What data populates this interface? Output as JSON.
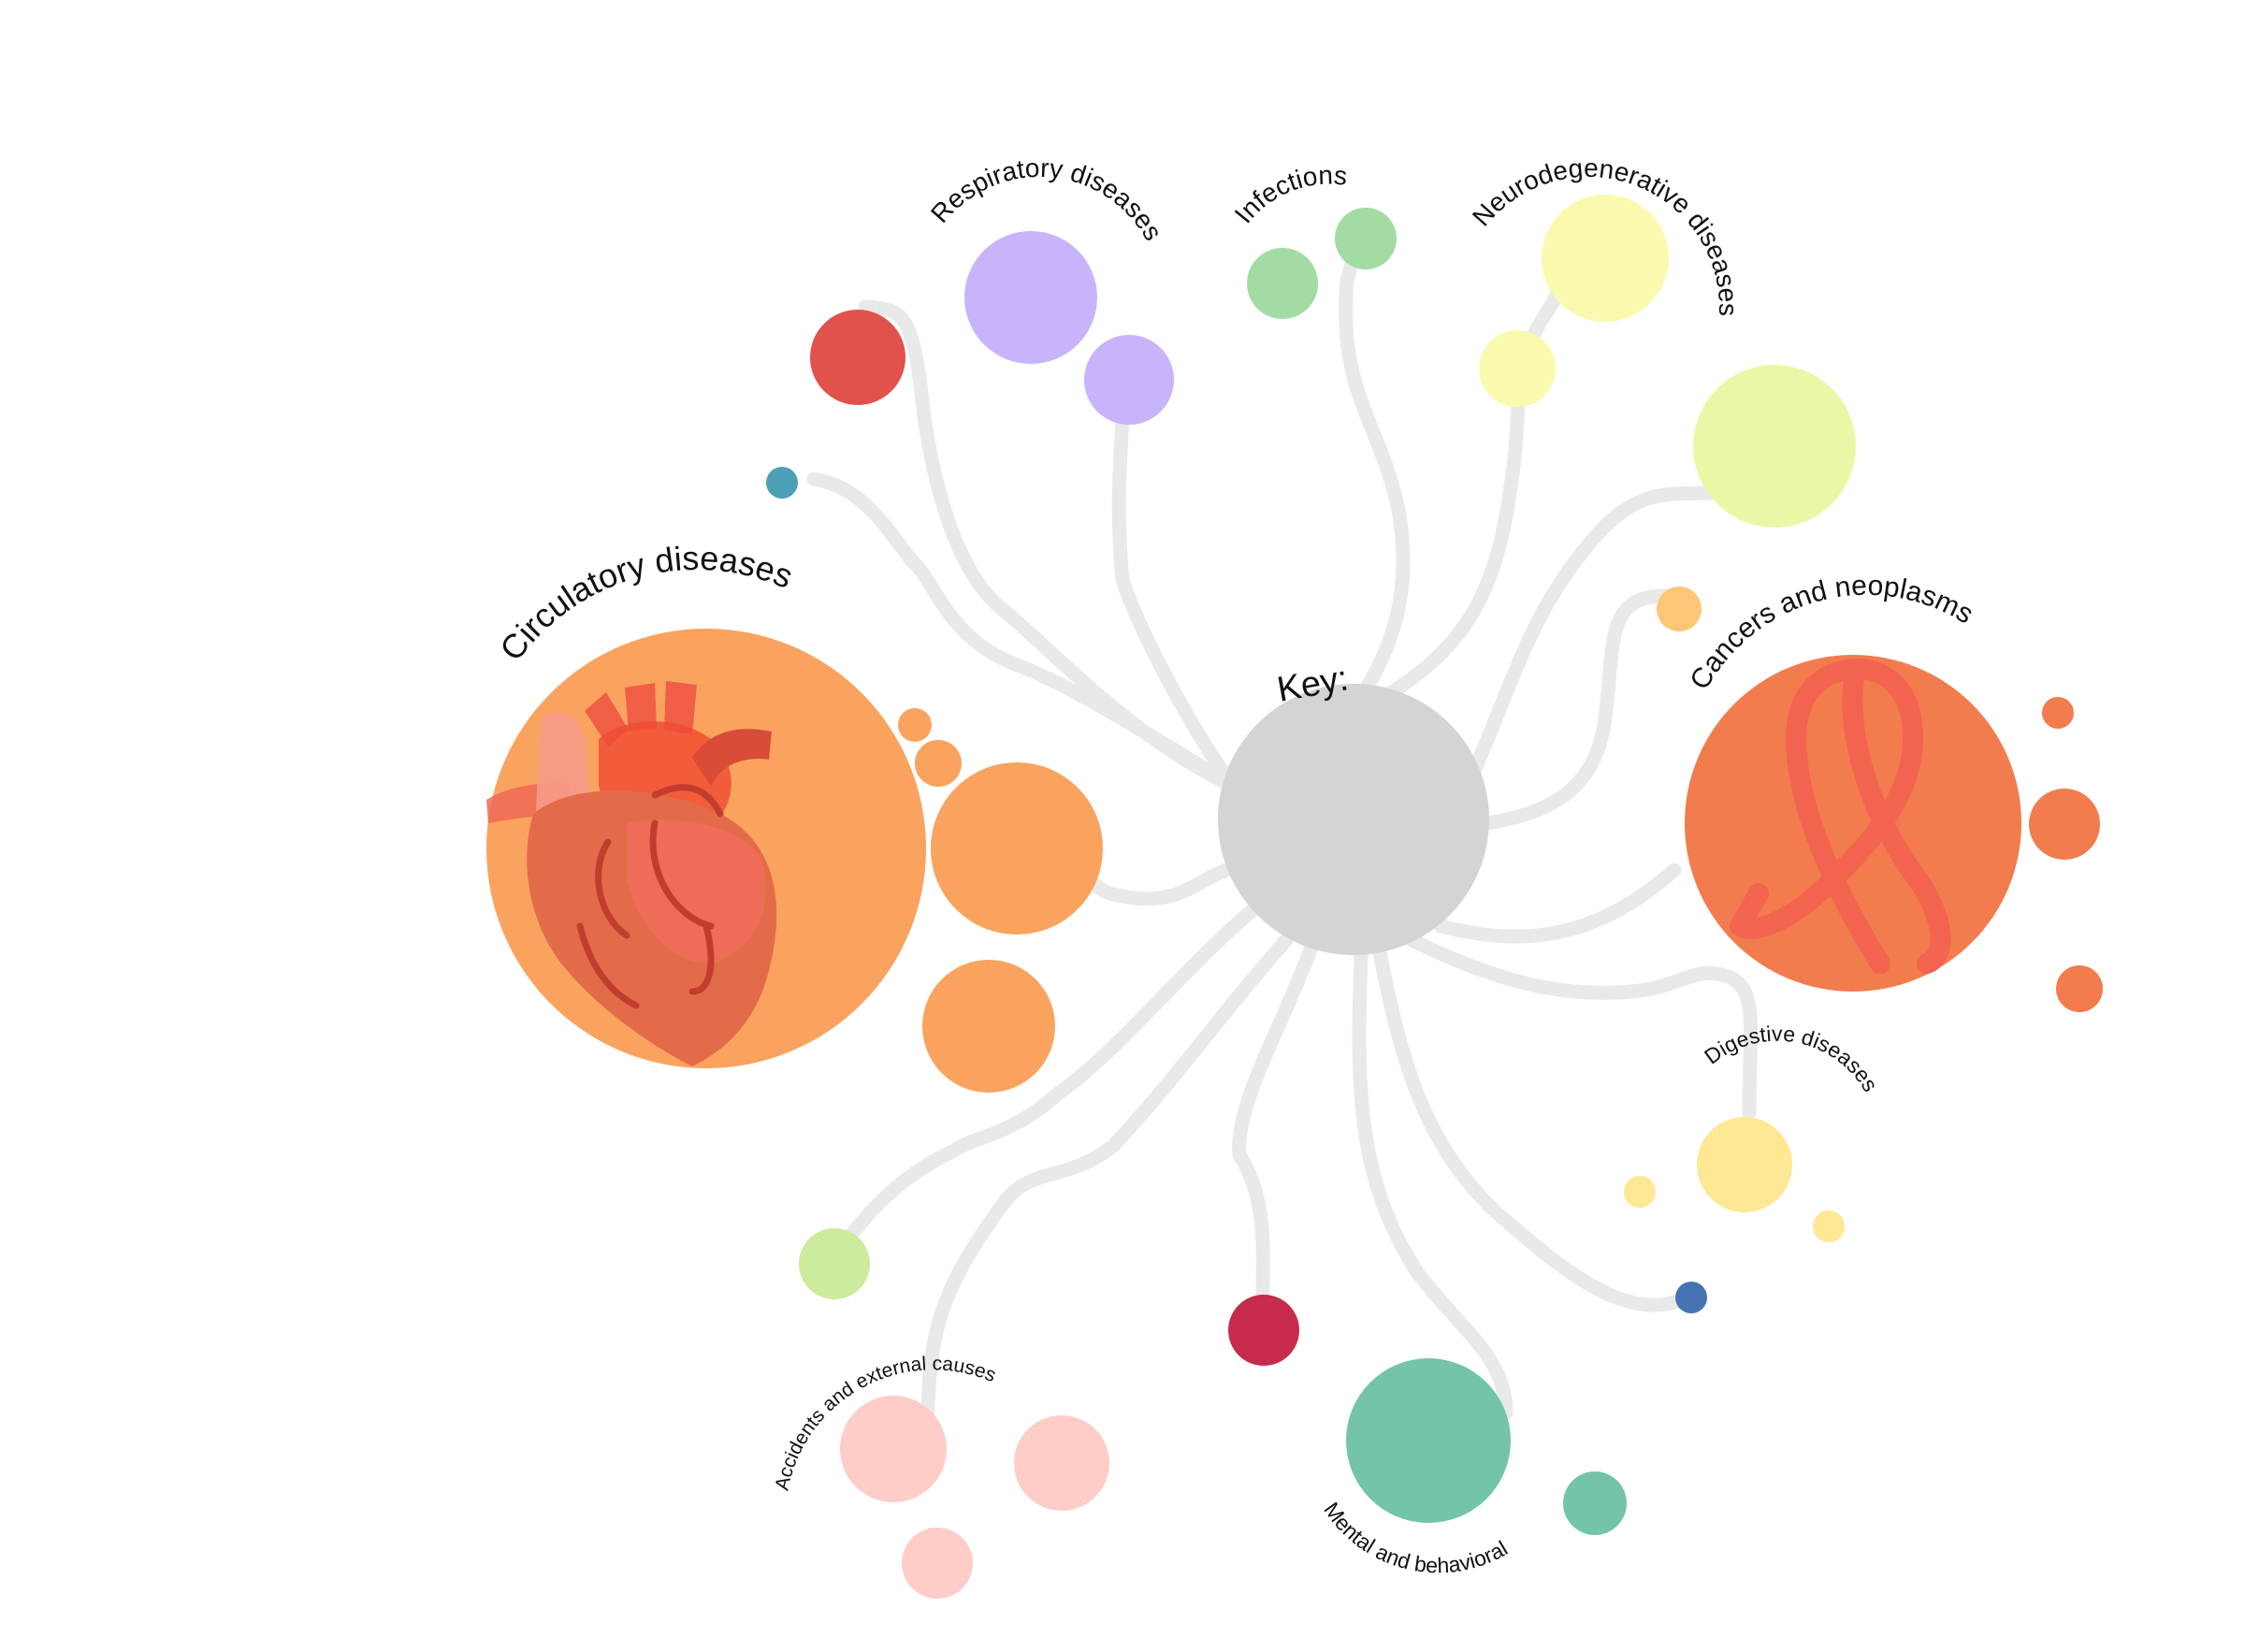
{
  "diagram": {
    "key_label": "Key:",
    "center": {
      "color": "#d4d4d4"
    },
    "connector_color": "#e8e9e9",
    "categories": {
      "circulatory": {
        "label": "Circulatory diseases",
        "color": "#faa35f",
        "icon": "heart-icon"
      },
      "respiratory": {
        "label": "Respiratory diseases",
        "color": "#c8b4fb"
      },
      "infections": {
        "label": "Infections",
        "color": "#a2dba4"
      },
      "neurodegenerative": {
        "label": "Neurodegenerative diseases",
        "color": "#fafaaf"
      },
      "cancers": {
        "label": "Cancers and neoplasms",
        "color": "#f27c4e",
        "icon": "ribbon-icon"
      },
      "digestive": {
        "label": "Digestive diseases",
        "color": "#fee894"
      },
      "mental": {
        "label": "Mental and behavioral",
        "color": "#73c4a8"
      },
      "accidents": {
        "label": "Accidents and external causes",
        "color": "#fecdc8"
      }
    },
    "other_colors": {
      "red": "#e0524b",
      "teal": "#4ba0b6",
      "lime": "#ebf7a6",
      "light_orange": "#fdc677",
      "light_green": "#cdeb9c",
      "crimson": "#c62b4b",
      "blue": "#4574b4"
    }
  }
}
